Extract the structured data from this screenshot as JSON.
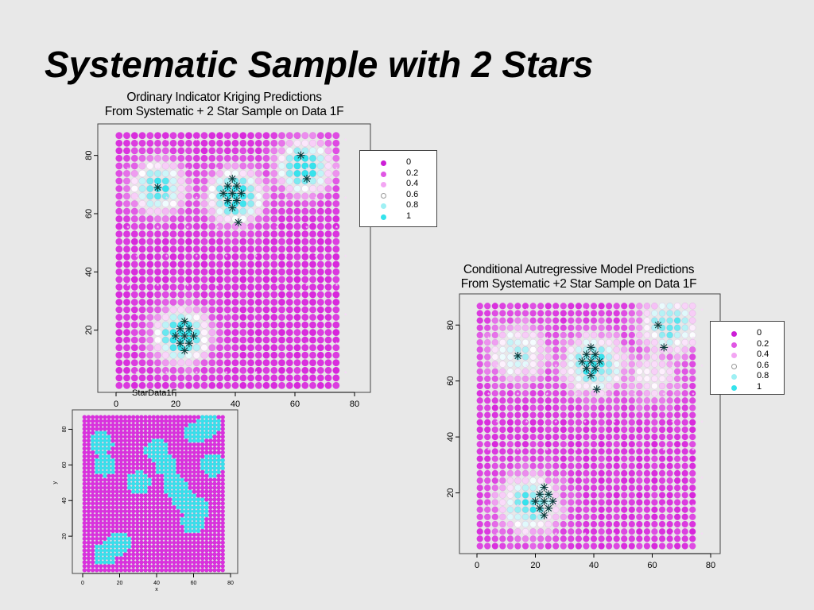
{
  "slide": {
    "title": "Systematic Sample with 2 Stars"
  },
  "colors": {
    "background": "#e8e8e8",
    "magenta": "#e23ae6",
    "cyan": "#34e3ec",
    "star": "#0a3a3a"
  },
  "chart_data": [
    {
      "type": "heatmap",
      "title_lines": [
        "Ordinary Indicator Kriging Predictions",
        "From Systematic + 2 Star Sample on Data 1F"
      ],
      "xlim": [
        0,
        80
      ],
      "ylim": [
        0,
        90
      ],
      "xticks": [
        0,
        20,
        40,
        60,
        80
      ],
      "yticks": [
        20,
        40,
        60,
        80
      ],
      "xlabel": "",
      "ylabel": "",
      "value_range": [
        0,
        1
      ],
      "surface_blobs": [
        {
          "x": 22,
          "y": 18,
          "value": 1.0
        },
        {
          "x": 40,
          "y": 66,
          "value": 1.0
        },
        {
          "x": 63,
          "y": 76,
          "value": 0.95
        },
        {
          "x": 14,
          "y": 69,
          "value": 0.85
        }
      ],
      "star_clusters": [
        {
          "x": 23,
          "y": 18
        },
        {
          "x": 39,
          "y": 67
        }
      ],
      "star_points": [
        {
          "x": 14,
          "y": 69
        },
        {
          "x": 41,
          "y": 57
        },
        {
          "x": 62,
          "y": 80
        },
        {
          "x": 64,
          "y": 72
        }
      ],
      "legend": {
        "position": "right",
        "labels": [
          "0",
          "0.2",
          "0.4",
          "0.6",
          "0.8",
          "1"
        ],
        "colors": [
          "#cc1fd6",
          "#e056e4",
          "#f3a6f3",
          "#ffffff",
          "#9ff0f4",
          "#34e3ec"
        ]
      }
    },
    {
      "type": "heatmap",
      "title_lines": [
        "Conditional Autregressive Model Predictions",
        "From Systematic +2 Star Sample on Data 1F"
      ],
      "xlim": [
        0,
        80
      ],
      "ylim": [
        0,
        90
      ],
      "xticks": [
        0,
        20,
        40,
        60,
        80
      ],
      "yticks": [
        20,
        40,
        60,
        80
      ],
      "xlabel": "",
      "ylabel": "",
      "value_range": [
        0,
        1
      ],
      "surface_blobs": [
        {
          "x": 18,
          "y": 16,
          "value": 0.9
        },
        {
          "x": 40,
          "y": 66,
          "value": 0.95
        },
        {
          "x": 66,
          "y": 80,
          "value": 0.85
        },
        {
          "x": 14,
          "y": 70,
          "value": 0.7
        },
        {
          "x": 60,
          "y": 62,
          "value": 0.5
        }
      ],
      "star_clusters": [
        {
          "x": 23,
          "y": 17
        },
        {
          "x": 39,
          "y": 67
        }
      ],
      "star_points": [
        {
          "x": 14,
          "y": 69
        },
        {
          "x": 41,
          "y": 57
        },
        {
          "x": 62,
          "y": 80
        },
        {
          "x": 64,
          "y": 72
        }
      ],
      "legend": {
        "position": "right",
        "labels": [
          "0",
          "0.2",
          "0.4",
          "0.6",
          "0.8",
          "1"
        ],
        "colors": [
          "#cc1fd6",
          "#e056e4",
          "#f3a6f3",
          "#ffffff",
          "#9ff0f4",
          "#34e3ec"
        ]
      }
    },
    {
      "type": "heatmap",
      "title": "StarData1F",
      "xlim": [
        0,
        80
      ],
      "ylim": [
        0,
        90
      ],
      "xticks": [
        0,
        20,
        40,
        60,
        80
      ],
      "yticks": [
        20,
        40,
        60,
        80
      ],
      "xlabel": "x",
      "ylabel": "y",
      "value_range": [
        0,
        1
      ],
      "surface_blobs": [
        {
          "x": 20,
          "y": 16,
          "value": 1
        },
        {
          "x": 12,
          "y": 10,
          "value": 1
        },
        {
          "x": 40,
          "y": 68,
          "value": 1
        },
        {
          "x": 45,
          "y": 60,
          "value": 1
        },
        {
          "x": 62,
          "y": 78,
          "value": 1
        },
        {
          "x": 68,
          "y": 82,
          "value": 1
        },
        {
          "x": 10,
          "y": 72,
          "value": 1
        },
        {
          "x": 12,
          "y": 60,
          "value": 1
        },
        {
          "x": 55,
          "y": 40,
          "value": 1
        },
        {
          "x": 62,
          "y": 35,
          "value": 1
        },
        {
          "x": 50,
          "y": 48,
          "value": 1
        },
        {
          "x": 60,
          "y": 28,
          "value": 1
        },
        {
          "x": 30,
          "y": 50,
          "value": 1
        },
        {
          "x": 70,
          "y": 60,
          "value": 1
        }
      ]
    }
  ]
}
